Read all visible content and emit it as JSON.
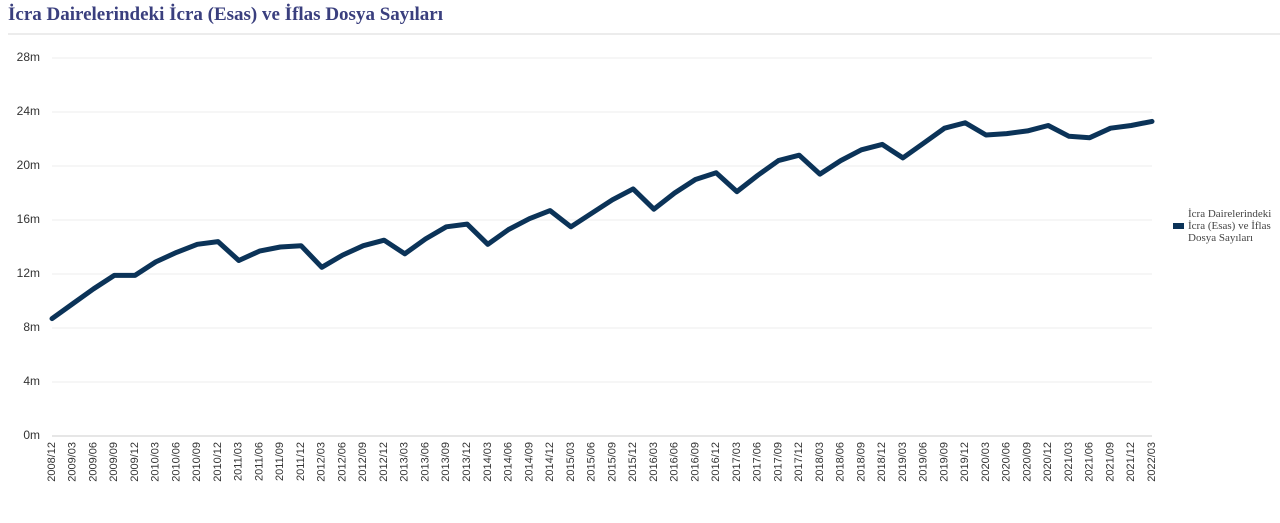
{
  "chart_data": {
    "type": "line",
    "title": "İcra Dairelerindeki İcra (Esas) ve İflas Dosya Sayıları",
    "categories": [
      "2008/12",
      "2009/03",
      "2009/06",
      "2009/09",
      "2009/12",
      "2010/03",
      "2010/06",
      "2010/09",
      "2010/12",
      "2011/03",
      "2011/06",
      "2011/09",
      "2011/12",
      "2012/03",
      "2012/06",
      "2012/09",
      "2012/12",
      "2013/03",
      "2013/06",
      "2013/09",
      "2013/12",
      "2014/03",
      "2014/06",
      "2014/09",
      "2014/12",
      "2015/03",
      "2015/06",
      "2015/09",
      "2015/12",
      "2016/03",
      "2016/06",
      "2016/09",
      "2016/12",
      "2017/03",
      "2017/06",
      "2017/09",
      "2017/12",
      "2018/03",
      "2018/06",
      "2018/09",
      "2018/12",
      "2019/03",
      "2019/06",
      "2019/09",
      "2019/12",
      "2020/03",
      "2020/06",
      "2020/09",
      "2020/12",
      "2021/03",
      "2021/06",
      "2021/09",
      "2021/12",
      "2022/03"
    ],
    "series": [
      {
        "name": "İcra Dairelerindeki İcra (Esas) ve İflas Dosya Sayıları",
        "color": "#0b3358",
        "values": [
          8700000,
          9800000,
          10900000,
          11900000,
          11900000,
          12900000,
          13600000,
          14200000,
          14400000,
          13000000,
          13700000,
          14000000,
          14100000,
          12500000,
          13400000,
          14100000,
          14500000,
          13500000,
          14600000,
          15500000,
          15700000,
          14200000,
          15300000,
          16100000,
          16700000,
          15500000,
          16500000,
          17500000,
          18300000,
          16800000,
          18000000,
          19000000,
          19500000,
          18100000,
          19300000,
          20400000,
          20800000,
          19400000,
          20400000,
          21200000,
          21600000,
          20600000,
          21700000,
          22800000,
          23200000,
          22300000,
          22400000,
          22600000,
          23000000,
          22200000,
          22100000,
          22800000,
          23000000,
          23300000
        ]
      }
    ],
    "ylim": [
      0,
      28000000
    ],
    "yticks": [
      {
        "value": 0,
        "label": "0m"
      },
      {
        "value": 4000000,
        "label": "4m"
      },
      {
        "value": 8000000,
        "label": "8m"
      },
      {
        "value": 12000000,
        "label": "12m"
      },
      {
        "value": 16000000,
        "label": "16m"
      },
      {
        "value": 20000000,
        "label": "20m"
      },
      {
        "value": 24000000,
        "label": "24m"
      },
      {
        "value": 28000000,
        "label": "28m"
      }
    ],
    "grid": true
  }
}
